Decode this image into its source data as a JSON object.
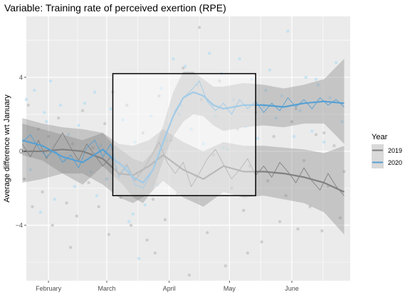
{
  "chart_data": {
    "type": "line",
    "title": "Variable: Training rate of perceived exertion (RPE)",
    "ylabel": "Average difference wrt January",
    "xlabel": "",
    "x_start": "2020-01-19",
    "x_end": "2020-06-29",
    "xlim": [
      "2020-01-21",
      "2020-06-30"
    ],
    "ylim": [
      -7.0,
      7.3
    ],
    "x_ticks": [
      {
        "date": "2020-02-01",
        "label": "February"
      },
      {
        "date": "2020-03-01",
        "label": "March"
      },
      {
        "date": "2020-04-01",
        "label": "April"
      },
      {
        "date": "2020-05-01",
        "label": "May"
      },
      {
        "date": "2020-06-01",
        "label": "June"
      }
    ],
    "y_ticks": [
      -4,
      0,
      4
    ],
    "highlight_box": {
      "x_start": "2020-03-04",
      "x_end": "2020-05-14",
      "y_min": -2.4,
      "y_max": 4.2
    },
    "legend": {
      "title": "Year",
      "position": "right",
      "entries": [
        "2019",
        "2020"
      ]
    },
    "grid": true,
    "panel_color": "#ebebeb",
    "series": [
      {
        "name": "2019",
        "color": "#808080",
        "smooth_x": [
          0,
          10,
          20,
          30,
          40,
          48,
          55,
          63,
          70,
          80,
          90,
          100,
          110,
          120,
          130,
          140,
          150,
          160
        ],
        "smooth_y": [
          0.0,
          0.0,
          0.1,
          0.0,
          -0.4,
          -1.2,
          -1.3,
          -0.8,
          -0.2,
          -1.0,
          -1.5,
          -0.8,
          -1.1,
          -1.1,
          -1.2,
          -1.4,
          -1.7,
          -2.2
        ],
        "band_upper": [
          1.8,
          1.5,
          1.3,
          1.2,
          1.0,
          0.4,
          0.3,
          0.6,
          1.2,
          0.5,
          0.0,
          0.5,
          0.3,
          0.3,
          0.2,
          0.1,
          -0.1,
          0.3
        ],
        "band_lower": [
          -1.7,
          -1.5,
          -1.2,
          -1.2,
          -1.8,
          -2.5,
          -2.8,
          -2.3,
          -1.6,
          -2.5,
          -3.0,
          -2.2,
          -2.5,
          -2.4,
          -2.6,
          -2.8,
          -3.3,
          -4.5
        ],
        "raw_x": [
          0,
          4,
          8,
          12,
          16,
          20,
          24,
          28,
          32,
          36,
          40,
          44,
          48,
          52,
          56,
          60,
          64,
          68,
          72,
          76,
          80,
          84,
          88,
          92,
          96,
          100,
          104,
          108,
          112,
          116,
          120,
          124,
          128,
          132,
          136,
          140,
          144,
          148,
          152,
          156,
          160
        ],
        "raw_y": [
          0.4,
          -0.3,
          0.6,
          -0.4,
          0.3,
          1.0,
          0.2,
          -0.5,
          0.4,
          -0.2,
          -0.8,
          -0.3,
          -1.3,
          -0.7,
          -1.6,
          -1.0,
          -0.3,
          0.5,
          -0.6,
          -1.2,
          -0.6,
          -1.9,
          -1.2,
          -0.4,
          0.1,
          -0.7,
          -1.5,
          -1.0,
          -0.4,
          -1.3,
          -0.8,
          -1.4,
          -0.6,
          -1.1,
          -1.7,
          -0.9,
          -1.6,
          -2.1,
          -1.2,
          -1.9,
          -2.4
        ]
      },
      {
        "name": "2020",
        "color": "#56a0d3",
        "smooth_x": [
          0,
          10,
          20,
          30,
          40,
          45,
          50,
          55,
          60,
          65,
          70,
          75,
          80,
          85,
          90,
          95,
          100,
          110,
          120,
          130,
          140,
          150,
          160
        ],
        "smooth_y": [
          0.6,
          0.3,
          -0.3,
          -0.6,
          0.1,
          -0.4,
          -0.8,
          -1.4,
          -1.7,
          -1.0,
          0.5,
          1.9,
          2.9,
          3.2,
          3.0,
          2.5,
          2.3,
          2.5,
          2.5,
          2.4,
          2.6,
          2.7,
          2.6
        ],
        "band_upper": [
          1.5,
          1.2,
          0.9,
          0.6,
          1.0,
          0.4,
          0.0,
          -0.4,
          -0.6,
          0.0,
          1.4,
          3.2,
          4.3,
          4.3,
          3.9,
          3.5,
          3.5,
          3.7,
          3.6,
          3.4,
          3.6,
          3.9,
          5.0
        ],
        "band_lower": [
          -0.2,
          -0.5,
          -1.2,
          -1.8,
          -0.8,
          -1.3,
          -1.8,
          -2.5,
          -2.8,
          -2.1,
          -0.5,
          0.8,
          1.6,
          2.0,
          1.9,
          1.4,
          1.1,
          1.3,
          1.4,
          1.3,
          1.5,
          1.5,
          0.4
        ],
        "raw_x": [
          0,
          4,
          8,
          12,
          16,
          20,
          24,
          28,
          32,
          36,
          40,
          44,
          48,
          52,
          56,
          60,
          64,
          68,
          72,
          76,
          80,
          84,
          88,
          92,
          96,
          100,
          104,
          108,
          112,
          116,
          120,
          124,
          128,
          132,
          136,
          140,
          144,
          148,
          152,
          156,
          160
        ],
        "raw_y": [
          0.5,
          0.9,
          0.2,
          -0.3,
          0.1,
          -0.6,
          -0.2,
          -0.9,
          0.2,
          0.6,
          -0.3,
          0.4,
          -1.4,
          -0.8,
          -1.8,
          -2.0,
          -1.2,
          -0.2,
          1.0,
          2.2,
          2.9,
          3.3,
          3.8,
          2.7,
          2.2,
          2.6,
          2.0,
          2.8,
          2.3,
          2.7,
          2.1,
          2.6,
          2.2,
          2.9,
          2.4,
          2.8,
          2.3,
          2.9,
          2.5,
          2.8,
          2.4
        ]
      }
    ],
    "scatter_2019": {
      "color": "#c8c8c8",
      "x": [
        1,
        3,
        5,
        8,
        10,
        13,
        15,
        18,
        22,
        25,
        27,
        30,
        33,
        35,
        38,
        41,
        43,
        46,
        49,
        52,
        54,
        57,
        60,
        62,
        65,
        68,
        71,
        74,
        77,
        80,
        83,
        86,
        89,
        92,
        95,
        98,
        101,
        104,
        107,
        110,
        113,
        116,
        119,
        122,
        125,
        128,
        131,
        134,
        137,
        140,
        143,
        146,
        149,
        152,
        155,
        158,
        160,
        24,
        45,
        66,
        88,
        112,
        136,
        150
      ],
      "y": [
        -1.5,
        2.5,
        -3.0,
        1.2,
        -2.2,
        0.8,
        -4.0,
        1.8,
        -2.8,
        0.4,
        -3.5,
        2.2,
        -1.7,
        0.2,
        -3.0,
        1.5,
        -4.5,
        -0.6,
        -2.5,
        2.5,
        -4.0,
        -1.2,
        1.0,
        -4.8,
        -2.6,
        3.0,
        -3.7,
        0.6,
        -2.3,
        4.5,
        -6.7,
        -1.3,
        2.8,
        -4.4,
        -0.2,
        3.8,
        -6.2,
        -2.0,
        1.2,
        -3.2,
        -0.8,
        2.1,
        -4.9,
        -1.6,
        0.8,
        -3.8,
        -2.4,
        1.6,
        -4.2,
        -0.5,
        -3.0,
        0.9,
        -4.3,
        -1.9,
        0.3,
        -3.6,
        -1.1,
        -5.2,
        3.2,
        -5.5,
        6.7,
        -5.5,
        2.3,
        1.0
      ]
    },
    "scatter_2020": {
      "color": "#bfe0f2",
      "x": [
        2,
        4,
        6,
        9,
        11,
        14,
        16,
        19,
        21,
        23,
        26,
        28,
        31,
        34,
        36,
        39,
        42,
        44,
        47,
        50,
        53,
        56,
        58,
        61,
        64,
        67,
        69,
        72,
        75,
        78,
        81,
        84,
        87,
        90,
        93,
        96,
        99,
        102,
        105,
        108,
        111,
        114,
        117,
        120,
        123,
        126,
        129,
        132,
        135,
        138,
        141,
        144,
        147,
        150,
        153,
        156,
        159,
        12,
        37,
        55,
        79,
        100,
        121,
        146
      ],
      "y": [
        2.8,
        -1.0,
        3.3,
        -3.3,
        2.1,
        3.8,
        -2.6,
        2.5,
        -0.5,
        0.9,
        -1.9,
        1.4,
        2.6,
        -1.1,
        3.2,
        0.3,
        -1.5,
        2.3,
        -0.9,
        1.7,
        -3.8,
        0.5,
        -5.8,
        -2.9,
        1.9,
        -1.8,
        3.4,
        0.6,
        5.0,
        2.0,
        4.6,
        1.2,
        3.6,
        0.4,
        5.3,
        1.9,
        4.2,
        0.1,
        2.8,
        5.0,
        1.3,
        3.9,
        0.7,
        2.4,
        4.4,
        1.8,
        3.0,
        6.5,
        0.8,
        2.2,
        4.0,
        1.1,
        3.6,
        0.5,
        2.9,
        4.8,
        1.6,
        1.6,
        -2.4,
        -3.4,
        2.5,
        0.2,
        3.3,
        3.9
      ]
    }
  }
}
